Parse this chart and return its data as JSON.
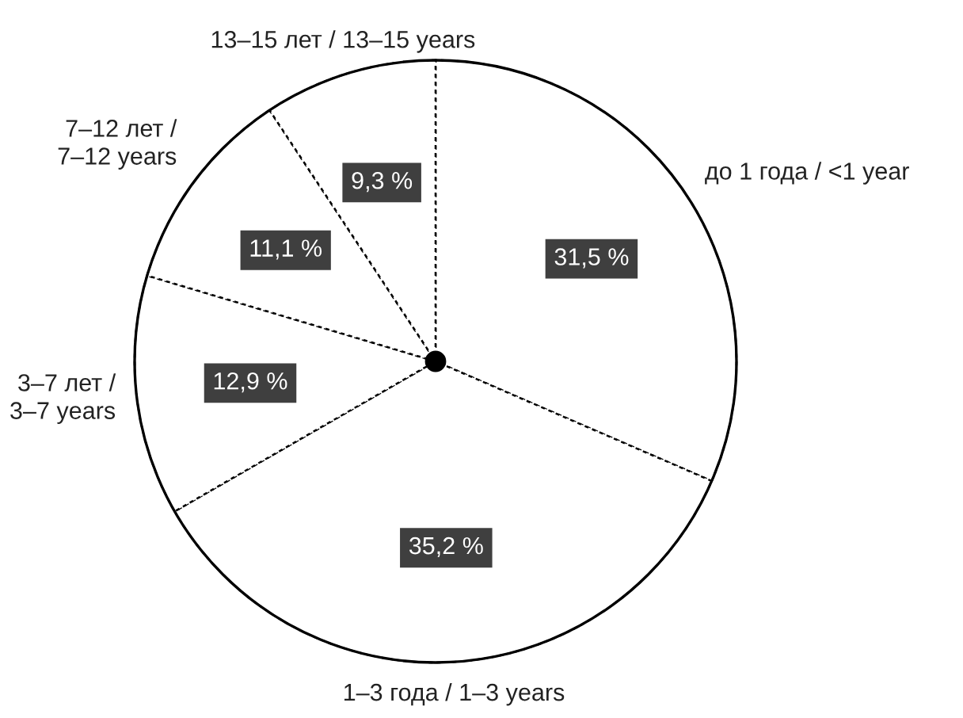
{
  "chart_data": {
    "type": "pie",
    "categories": [
      "до 1 года / <1 year",
      "1–3 года / 1–3 years",
      "3–7 лет /\n3–7 years",
      "7–12 лет /\n7–12 years",
      "13–15 лет / 13–15 years"
    ],
    "values": [
      31.5,
      35.2,
      12.9,
      11.1,
      9.3
    ],
    "colors": [
      "#ffffff",
      "#ffffff",
      "#ffffff",
      "#ffffff",
      "#ffffff"
    ],
    "value_labels": [
      "31,5 %",
      "35,2 %",
      "12,9 %",
      "11,1 %",
      "9,3 %"
    ]
  }
}
